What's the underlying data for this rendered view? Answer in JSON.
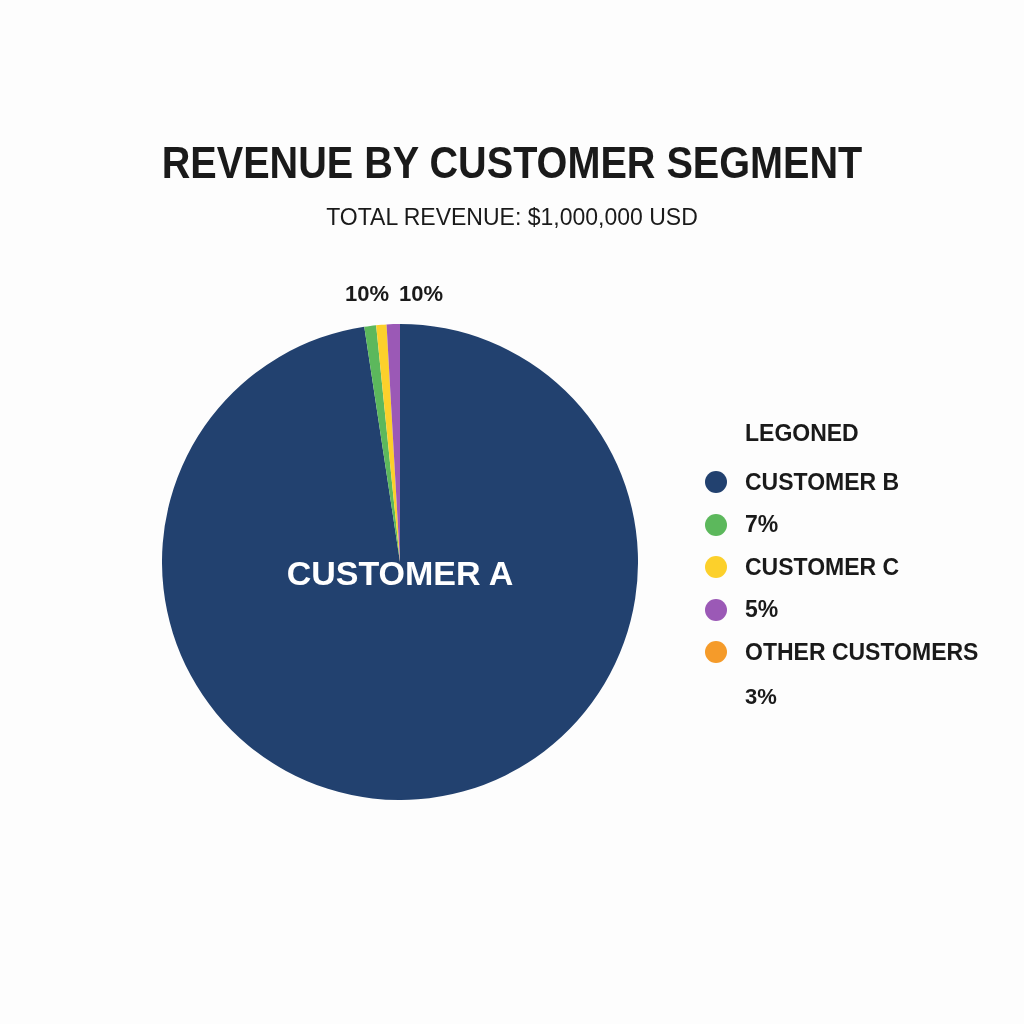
{
  "chart_data": {
    "type": "pie",
    "title": "REVENUE BY CUSTOMER SEGMENT",
    "subtitle": "TOTAL REVENUE: $1,000,000 USD",
    "legend_title": "LEGONED",
    "legend": "right",
    "categories": [
      "CUSTOMER B",
      "7%",
      "CUSTOMER C",
      "5%",
      "OTHER CUSTOMERS"
    ],
    "values": [
      97.6,
      0.8,
      0.7,
      0.9,
      0
    ],
    "colors": [
      "#22416f",
      "#5cb85c",
      "#fcd02b",
      "#9b59b6",
      "#f59b2a"
    ],
    "annotations": [
      "CUSTOMER A",
      "10%",
      "10%",
      "3%"
    ]
  }
}
